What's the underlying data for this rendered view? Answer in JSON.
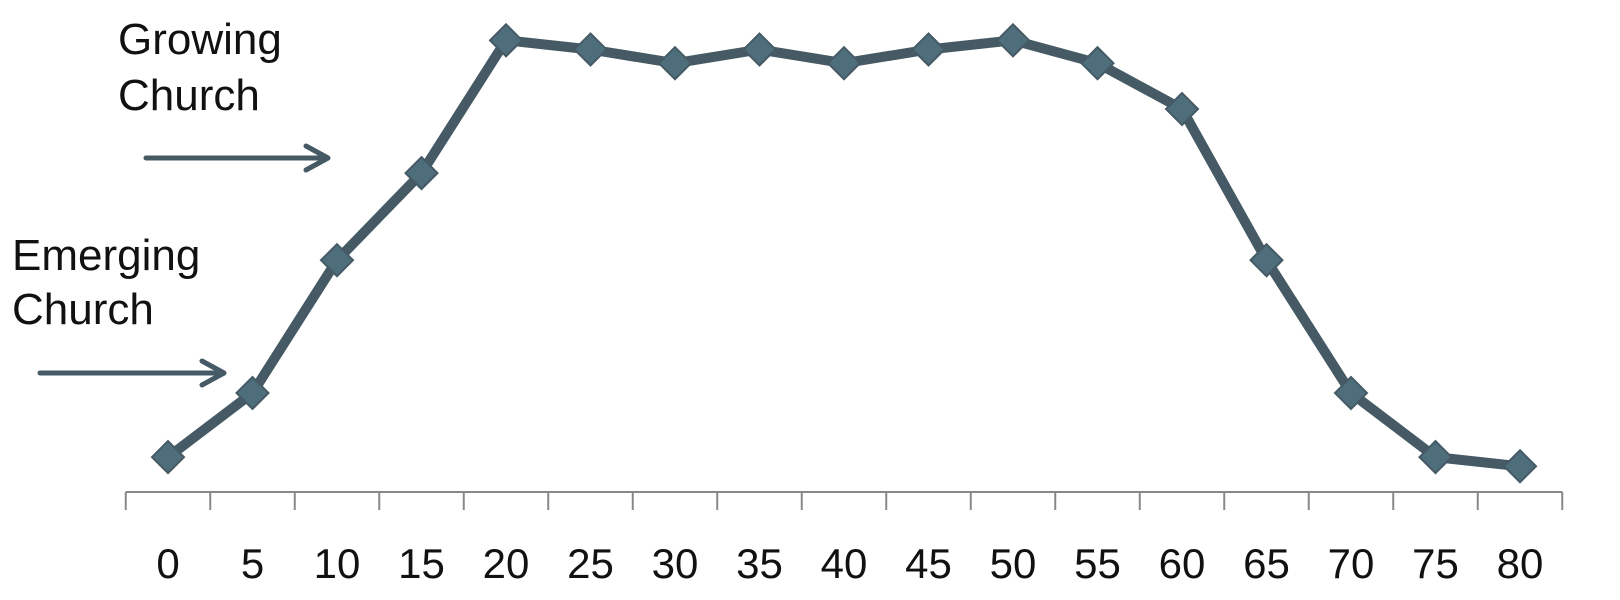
{
  "colors": {
    "series_line": "#455a64",
    "marker_fill": "#4f6e7c",
    "arrow": "#455a64",
    "axis": "#888888",
    "text": "#111111"
  },
  "annotations": [
    {
      "id": "growing",
      "line1": "Growing",
      "line2": "Church",
      "arrow": "right",
      "points_to_x": 15
    },
    {
      "id": "emerging",
      "line1": "Emerging",
      "line2": "Church",
      "arrow": "right",
      "points_to_x": 5
    }
  ],
  "chart_data": {
    "type": "line",
    "title": "",
    "xlabel": "",
    "ylabel": "",
    "x": [
      0,
      5,
      10,
      15,
      20,
      25,
      30,
      35,
      40,
      45,
      50,
      55,
      60,
      65,
      70,
      75,
      80
    ],
    "series": [
      {
        "values": [
          2,
          16,
          45,
          64,
          93,
          91,
          88,
          91,
          88,
          91,
          93,
          88,
          78,
          45,
          16,
          2,
          0
        ]
      }
    ],
    "xlim": [
      0,
      80
    ],
    "ylim": [
      -3,
      97
    ],
    "y_axis_visible": false,
    "grid": false,
    "legend": "none",
    "marker": "diamond"
  }
}
